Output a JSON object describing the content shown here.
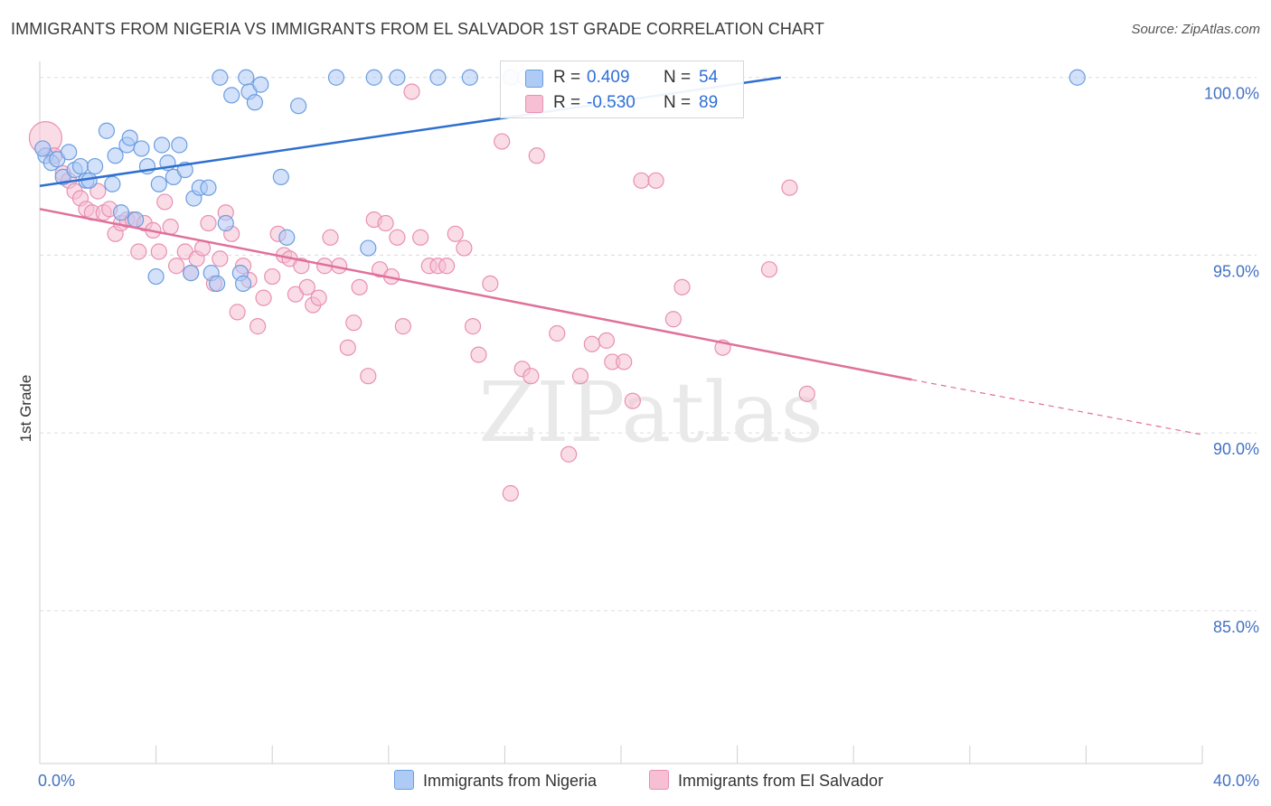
{
  "title": "IMMIGRANTS FROM NIGERIA VS IMMIGRANTS FROM EL SALVADOR 1ST GRADE CORRELATION CHART",
  "source": "Source: ZipAtlas.com",
  "watermark": "ZIPatlas",
  "colors": {
    "nigeria_fill": "#aecbf5",
    "nigeria_stroke": "#6c9de0",
    "nigeria_line": "#2e6fd0",
    "elsalvador_fill": "#f6bfd3",
    "elsalvador_stroke": "#e890b0",
    "elsalvador_line": "#e0709a",
    "label_blue": "#4472c4"
  },
  "legend": {
    "rows": [
      {
        "r_label": "R =",
        "r_value": "0.409",
        "n_label": "N =",
        "n_value": "54"
      },
      {
        "r_label": "R =",
        "r_value": "-0.530",
        "n_label": "N =",
        "n_value": "89"
      }
    ]
  },
  "bottom_legend": {
    "nigeria": "Immigrants from Nigeria",
    "elsalvador": "Immigrants from El Salvador"
  },
  "chart_data": {
    "type": "scatter",
    "title": "IMMIGRANTS FROM NIGERIA VS IMMIGRANTS FROM EL SALVADOR 1ST GRADE CORRELATION CHART",
    "xlabel": "",
    "ylabel": "1st Grade",
    "x_tick_labels": [
      "0.0%",
      "40.0%"
    ],
    "y_tick_labels": [
      "100.0%",
      "95.0%",
      "90.0%",
      "85.0%"
    ],
    "xlim": [
      0,
      40
    ],
    "ylim": [
      80.7,
      100.4
    ],
    "grid": true,
    "legend_position": "top-center",
    "series": [
      {
        "name": "Immigrants from Nigeria",
        "R": 0.409,
        "N": 54,
        "trend": {
          "x": [
            0,
            25.5
          ],
          "y": [
            96.95,
            100.0
          ]
        },
        "points": [
          [
            0.2,
            97.8
          ],
          [
            0.4,
            97.6
          ],
          [
            0.6,
            97.7
          ],
          [
            0.8,
            97.2
          ],
          [
            1.0,
            97.9
          ],
          [
            1.2,
            97.4
          ],
          [
            1.4,
            97.5
          ],
          [
            1.6,
            97.1
          ],
          [
            1.7,
            97.1
          ],
          [
            1.9,
            97.5
          ],
          [
            2.3,
            98.5
          ],
          [
            2.5,
            97.0
          ],
          [
            2.6,
            97.8
          ],
          [
            2.8,
            96.2
          ],
          [
            3.0,
            98.1
          ],
          [
            3.1,
            98.3
          ],
          [
            3.3,
            96.0
          ],
          [
            3.5,
            98.0
          ],
          [
            3.7,
            97.5
          ],
          [
            4.0,
            94.4
          ],
          [
            4.1,
            97.0
          ],
          [
            4.2,
            98.1
          ],
          [
            4.4,
            97.6
          ],
          [
            4.6,
            97.2
          ],
          [
            4.8,
            98.1
          ],
          [
            5.0,
            97.4
          ],
          [
            5.2,
            94.5
          ],
          [
            5.3,
            96.6
          ],
          [
            5.5,
            96.9
          ],
          [
            5.8,
            96.9
          ],
          [
            5.9,
            94.5
          ],
          [
            6.1,
            94.2
          ],
          [
            6.2,
            100.0
          ],
          [
            6.4,
            95.9
          ],
          [
            6.6,
            99.5
          ],
          [
            6.9,
            94.5
          ],
          [
            7.0,
            94.2
          ],
          [
            7.1,
            100.0
          ],
          [
            7.2,
            99.6
          ],
          [
            7.4,
            99.3
          ],
          [
            7.6,
            99.8
          ],
          [
            8.3,
            97.2
          ],
          [
            8.5,
            95.5
          ],
          [
            8.9,
            99.2
          ],
          [
            10.2,
            100.0
          ],
          [
            11.3,
            95.2
          ],
          [
            11.5,
            100.0
          ],
          [
            12.3,
            100.0
          ],
          [
            13.7,
            100.0
          ],
          [
            14.8,
            100.0
          ],
          [
            16.2,
            100.0
          ],
          [
            16.7,
            100.0
          ],
          [
            35.7,
            100.0
          ],
          [
            0.1,
            98.0
          ]
        ]
      },
      {
        "name": "Immigrants from El Salvador",
        "R": -0.53,
        "N": 89,
        "trend": {
          "x": [
            0,
            30
          ],
          "y": [
            96.3,
            91.5
          ]
        },
        "trend_dashed": {
          "x": [
            30,
            40
          ],
          "y": [
            91.5,
            89.95
          ]
        },
        "points": [
          [
            0.2,
            98.3
          ],
          [
            0.5,
            97.8
          ],
          [
            0.8,
            97.3
          ],
          [
            1.0,
            97.1
          ],
          [
            1.2,
            96.8
          ],
          [
            1.4,
            96.6
          ],
          [
            1.6,
            96.3
          ],
          [
            1.8,
            96.2
          ],
          [
            2.0,
            96.8
          ],
          [
            2.2,
            96.2
          ],
          [
            2.4,
            96.3
          ],
          [
            2.6,
            95.6
          ],
          [
            2.8,
            95.9
          ],
          [
            3.0,
            96.0
          ],
          [
            3.2,
            96.0
          ],
          [
            3.4,
            95.1
          ],
          [
            3.6,
            95.9
          ],
          [
            3.9,
            95.7
          ],
          [
            4.1,
            95.1
          ],
          [
            4.3,
            96.5
          ],
          [
            4.5,
            95.8
          ],
          [
            4.7,
            94.7
          ],
          [
            5.0,
            95.1
          ],
          [
            5.2,
            94.5
          ],
          [
            5.4,
            94.9
          ],
          [
            5.6,
            95.2
          ],
          [
            5.8,
            95.9
          ],
          [
            6.0,
            94.2
          ],
          [
            6.2,
            94.9
          ],
          [
            6.4,
            96.2
          ],
          [
            6.6,
            95.6
          ],
          [
            6.8,
            93.4
          ],
          [
            7.0,
            94.7
          ],
          [
            7.2,
            94.3
          ],
          [
            7.5,
            93.0
          ],
          [
            7.7,
            93.8
          ],
          [
            8.0,
            94.4
          ],
          [
            8.2,
            95.6
          ],
          [
            8.4,
            95.0
          ],
          [
            8.6,
            94.9
          ],
          [
            8.8,
            93.9
          ],
          [
            9.0,
            94.7
          ],
          [
            9.2,
            94.1
          ],
          [
            9.4,
            93.6
          ],
          [
            9.6,
            93.8
          ],
          [
            9.8,
            94.7
          ],
          [
            10.0,
            95.5
          ],
          [
            10.3,
            94.7
          ],
          [
            10.6,
            92.4
          ],
          [
            10.8,
            93.1
          ],
          [
            11.0,
            94.1
          ],
          [
            11.3,
            91.6
          ],
          [
            11.5,
            96.0
          ],
          [
            11.7,
            94.6
          ],
          [
            11.9,
            95.9
          ],
          [
            12.1,
            94.4
          ],
          [
            12.3,
            95.5
          ],
          [
            12.5,
            93.0
          ],
          [
            12.8,
            99.6
          ],
          [
            13.1,
            95.5
          ],
          [
            13.4,
            94.7
          ],
          [
            13.7,
            94.7
          ],
          [
            14.0,
            94.7
          ],
          [
            14.3,
            95.6
          ],
          [
            14.6,
            95.2
          ],
          [
            14.9,
            93.0
          ],
          [
            15.1,
            92.2
          ],
          [
            15.5,
            94.2
          ],
          [
            15.9,
            98.2
          ],
          [
            16.2,
            88.3
          ],
          [
            16.6,
            91.8
          ],
          [
            16.9,
            91.6
          ],
          [
            17.1,
            97.8
          ],
          [
            17.8,
            92.8
          ],
          [
            18.2,
            89.4
          ],
          [
            18.6,
            91.6
          ],
          [
            19.0,
            92.5
          ],
          [
            19.5,
            92.6
          ],
          [
            19.7,
            92.0
          ],
          [
            20.1,
            92.0
          ],
          [
            20.4,
            90.9
          ],
          [
            20.7,
            97.1
          ],
          [
            21.8,
            93.2
          ],
          [
            22.1,
            94.1
          ],
          [
            23.5,
            92.4
          ],
          [
            25.1,
            94.6
          ],
          [
            25.8,
            96.9
          ],
          [
            26.4,
            91.1
          ],
          [
            21.2,
            97.1
          ]
        ]
      }
    ]
  }
}
